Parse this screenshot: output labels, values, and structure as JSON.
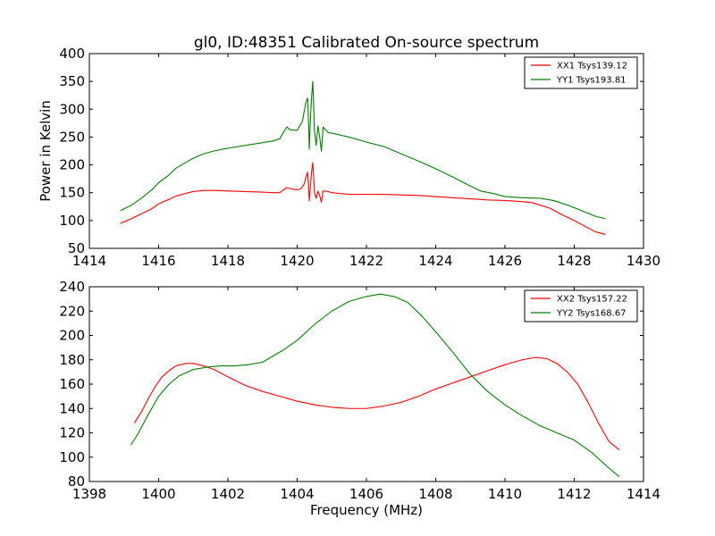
{
  "chart_data": [
    {
      "type": "line",
      "title": "gl0, ID:48351 Calibrated On-source spectrum",
      "xlabel": "",
      "ylabel": "Power in Kelvin",
      "xlim": [
        1414,
        1430
      ],
      "ylim": [
        50,
        400
      ],
      "xticks": [
        1414,
        1416,
        1418,
        1420,
        1422,
        1424,
        1426,
        1428,
        1430
      ],
      "yticks": [
        50,
        100,
        150,
        200,
        250,
        300,
        350,
        400
      ],
      "legend_position": "top-right",
      "grid": false,
      "series": [
        {
          "name": "XX1 Tsys139.12",
          "color": "#ff0000",
          "points": [
            [
              1414.9,
              95
            ],
            [
              1415.2,
              103
            ],
            [
              1415.5,
              112
            ],
            [
              1415.8,
              121
            ],
            [
              1416.0,
              130
            ],
            [
              1416.3,
              138
            ],
            [
              1416.5,
              144
            ],
            [
              1416.8,
              149
            ],
            [
              1417.0,
              152
            ],
            [
              1417.3,
              154
            ],
            [
              1417.6,
              154
            ],
            [
              1418.0,
              153
            ],
            [
              1418.5,
              152
            ],
            [
              1419.0,
              151
            ],
            [
              1419.3,
              150
            ],
            [
              1419.5,
              150
            ],
            [
              1419.6,
              155
            ],
            [
              1419.7,
              159
            ],
            [
              1419.9,
              156
            ],
            [
              1420.0,
              155
            ],
            [
              1420.1,
              157
            ],
            [
              1420.2,
              165
            ],
            [
              1420.25,
              177
            ],
            [
              1420.3,
              187
            ],
            [
              1420.33,
              160
            ],
            [
              1420.35,
              135
            ],
            [
              1420.38,
              160
            ],
            [
              1420.42,
              190
            ],
            [
              1420.45,
              204
            ],
            [
              1420.48,
              175
            ],
            [
              1420.5,
              150
            ],
            [
              1420.55,
              140
            ],
            [
              1420.6,
              153
            ],
            [
              1420.65,
              145
            ],
            [
              1420.7,
              133
            ],
            [
              1420.75,
              153
            ],
            [
              1420.9,
              152
            ],
            [
              1421.0,
              150
            ],
            [
              1421.5,
              147
            ],
            [
              1422.0,
              147
            ],
            [
              1422.5,
              147
            ],
            [
              1423.0,
              146
            ],
            [
              1423.5,
              145
            ],
            [
              1424.0,
              143
            ],
            [
              1424.5,
              141
            ],
            [
              1425.0,
              139
            ],
            [
              1425.5,
              137
            ],
            [
              1426.0,
              136
            ],
            [
              1426.5,
              134
            ],
            [
              1426.8,
              132
            ],
            [
              1427.0,
              128
            ],
            [
              1427.3,
              122
            ],
            [
              1427.6,
              112
            ],
            [
              1428.0,
              100
            ],
            [
              1428.3,
              90
            ],
            [
              1428.6,
              80
            ],
            [
              1428.9,
              75
            ]
          ]
        },
        {
          "name": "YY1 Tsys193.81",
          "color": "#008000",
          "points": [
            [
              1414.9,
              118
            ],
            [
              1415.2,
              127
            ],
            [
              1415.5,
              140
            ],
            [
              1415.8,
              155
            ],
            [
              1416.0,
              168
            ],
            [
              1416.3,
              182
            ],
            [
              1416.5,
              194
            ],
            [
              1416.8,
              205
            ],
            [
              1417.0,
              212
            ],
            [
              1417.3,
              220
            ],
            [
              1417.6,
              225
            ],
            [
              1418.0,
              230
            ],
            [
              1418.5,
              235
            ],
            [
              1419.0,
              240
            ],
            [
              1419.3,
              243
            ],
            [
              1419.5,
              247
            ],
            [
              1419.6,
              258
            ],
            [
              1419.7,
              268
            ],
            [
              1419.8,
              263
            ],
            [
              1420.0,
              262
            ],
            [
              1420.15,
              278
            ],
            [
              1420.25,
              312
            ],
            [
              1420.3,
              320
            ],
            [
              1420.33,
              275
            ],
            [
              1420.35,
              228
            ],
            [
              1420.38,
              280
            ],
            [
              1420.42,
              325
            ],
            [
              1420.45,
              350
            ],
            [
              1420.48,
              300
            ],
            [
              1420.5,
              260
            ],
            [
              1420.55,
              235
            ],
            [
              1420.6,
              270
            ],
            [
              1420.65,
              250
            ],
            [
              1420.7,
              225
            ],
            [
              1420.75,
              268
            ],
            [
              1420.9,
              258
            ],
            [
              1421.0,
              257
            ],
            [
              1421.5,
              250
            ],
            [
              1422.0,
              241
            ],
            [
              1422.5,
              233
            ],
            [
              1423.0,
              220
            ],
            [
              1423.5,
              207
            ],
            [
              1424.0,
              193
            ],
            [
              1424.5,
              178
            ],
            [
              1425.0,
              162
            ],
            [
              1425.3,
              153
            ],
            [
              1425.7,
              148
            ],
            [
              1426.0,
              143
            ],
            [
              1426.5,
              141
            ],
            [
              1427.0,
              140
            ],
            [
              1427.4,
              136
            ],
            [
              1427.8,
              128
            ],
            [
              1428.2,
              118
            ],
            [
              1428.6,
              108
            ],
            [
              1428.9,
              103
            ]
          ]
        }
      ]
    },
    {
      "type": "line",
      "title": "",
      "xlabel": "Frequency (MHz)",
      "ylabel": "",
      "xlim": [
        1398,
        1414
      ],
      "ylim": [
        80,
        240
      ],
      "xticks": [
        1398,
        1400,
        1402,
        1404,
        1406,
        1408,
        1410,
        1412,
        1414
      ],
      "yticks": [
        80,
        100,
        120,
        140,
        160,
        180,
        200,
        220,
        240
      ],
      "legend_position": "top-right",
      "grid": false,
      "series": [
        {
          "name": "XX2 Tsys157.22",
          "color": "#ff0000",
          "points": [
            [
              1399.3,
              128
            ],
            [
              1399.5,
              137
            ],
            [
              1399.7,
              148
            ],
            [
              1399.9,
              158
            ],
            [
              1400.1,
              166
            ],
            [
              1400.3,
              171
            ],
            [
              1400.5,
              175
            ],
            [
              1400.8,
              177
            ],
            [
              1401.0,
              177
            ],
            [
              1401.3,
              175
            ],
            [
              1401.6,
              172
            ],
            [
              1402.0,
              166
            ],
            [
              1402.5,
              159
            ],
            [
              1403.0,
              154
            ],
            [
              1403.5,
              150
            ],
            [
              1404.0,
              146
            ],
            [
              1404.5,
              143
            ],
            [
              1405.0,
              141
            ],
            [
              1405.5,
              140
            ],
            [
              1406.0,
              140
            ],
            [
              1406.5,
              142
            ],
            [
              1407.0,
              145
            ],
            [
              1407.5,
              150
            ],
            [
              1408.0,
              156
            ],
            [
              1408.5,
              161
            ],
            [
              1409.0,
              166
            ],
            [
              1409.5,
              171
            ],
            [
              1410.0,
              176
            ],
            [
              1410.5,
              180
            ],
            [
              1410.9,
              182
            ],
            [
              1411.2,
              181
            ],
            [
              1411.5,
              177
            ],
            [
              1411.8,
              170
            ],
            [
              1412.1,
              160
            ],
            [
              1412.4,
              145
            ],
            [
              1412.7,
              128
            ],
            [
              1413.0,
              113
            ],
            [
              1413.3,
              106
            ]
          ]
        },
        {
          "name": "YY2 Tsys168.67",
          "color": "#008000",
          "points": [
            [
              1399.2,
              110
            ],
            [
              1399.4,
              119
            ],
            [
              1399.7,
              135
            ],
            [
              1400.0,
              150
            ],
            [
              1400.3,
              160
            ],
            [
              1400.6,
              167
            ],
            [
              1401.0,
              172
            ],
            [
              1401.4,
              174
            ],
            [
              1401.8,
              175
            ],
            [
              1402.2,
              175
            ],
            [
              1402.6,
              176
            ],
            [
              1403.0,
              178
            ],
            [
              1403.3,
              183
            ],
            [
              1403.6,
              188
            ],
            [
              1404.0,
              196
            ],
            [
              1404.5,
              209
            ],
            [
              1405.0,
              220
            ],
            [
              1405.5,
              228
            ],
            [
              1406.0,
              232
            ],
            [
              1406.4,
              234
            ],
            [
              1406.8,
              232
            ],
            [
              1407.2,
              227
            ],
            [
              1407.6,
              216
            ],
            [
              1408.0,
              203
            ],
            [
              1408.5,
              186
            ],
            [
              1409.0,
              168
            ],
            [
              1409.5,
              154
            ],
            [
              1410.0,
              143
            ],
            [
              1410.5,
              134
            ],
            [
              1411.0,
              126
            ],
            [
              1411.5,
              120
            ],
            [
              1412.0,
              114
            ],
            [
              1412.5,
              104
            ],
            [
              1413.0,
              91
            ],
            [
              1413.3,
              84
            ]
          ]
        }
      ]
    }
  ]
}
